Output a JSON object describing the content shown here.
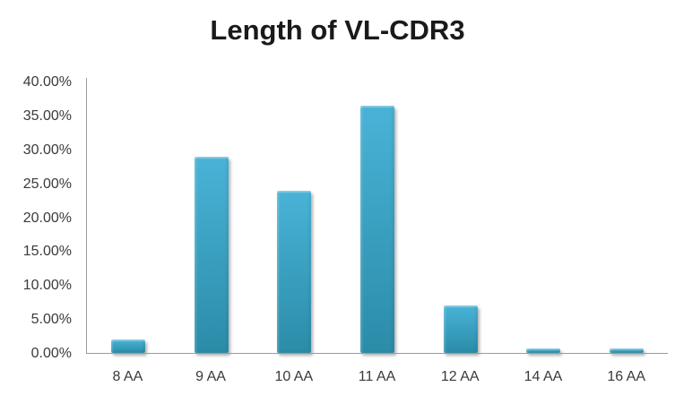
{
  "chart_data": {
    "type": "bar",
    "title": "Length of VL-CDR3",
    "categories": [
      "8 AA",
      "9 AA",
      "10 AA",
      "11 AA",
      "12 AA",
      "14 AA",
      "16 AA"
    ],
    "values": [
      2.0,
      29.0,
      24.0,
      36.5,
      7.0,
      0.7,
      0.7
    ],
    "y_ticks": [
      "40.00%",
      "35.00%",
      "30.00%",
      "25.00%",
      "20.00%",
      "15.00%",
      "10.00%",
      "5.00%",
      "0.00%"
    ],
    "ylim": [
      0,
      40
    ],
    "xlabel": "",
    "ylabel": "",
    "grid": false,
    "legend": false,
    "colors": {
      "bar_top": "#49b3d7",
      "bar_bottom": "#2b8ca8",
      "axis_line": "#9b9b9b",
      "tick_text": "#3a3a3a",
      "title_text": "#1a1a1a"
    }
  }
}
